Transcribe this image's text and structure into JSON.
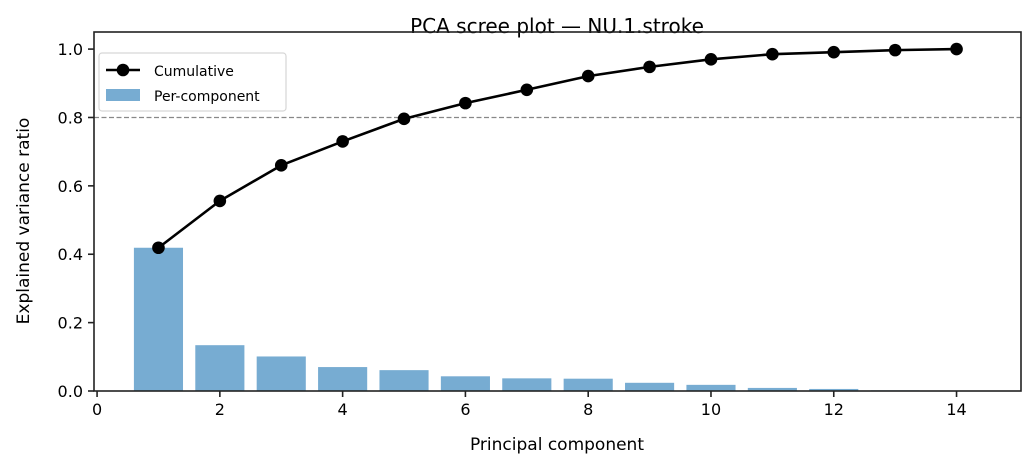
{
  "chart_data": {
    "type": "bar+line",
    "title": "PCA scree plot — NU.1.stroke",
    "xlabel": "Principal component",
    "ylabel": "Explained variance ratio",
    "x": [
      1,
      2,
      3,
      4,
      5,
      6,
      7,
      8,
      9,
      10,
      11,
      12,
      13,
      14
    ],
    "series": [
      {
        "name": "Per-component",
        "type": "bar",
        "color": "#77acd2",
        "values": [
          0.419,
          0.134,
          0.101,
          0.07,
          0.061,
          0.043,
          0.037,
          0.036,
          0.024,
          0.018,
          0.009,
          0.006,
          0.002,
          0.001
        ]
      },
      {
        "name": "Cumulative",
        "type": "line",
        "color": "#000000",
        "marker": "circle",
        "values": [
          0.419,
          0.556,
          0.66,
          0.73,
          0.796,
          0.842,
          0.881,
          0.921,
          0.948,
          0.97,
          0.985,
          0.991,
          0.997,
          1.0
        ]
      }
    ],
    "reference_line": {
      "y": 0.8,
      "style": "dashed",
      "color": "#888888"
    },
    "xlim": [
      -0.05,
      15.05
    ],
    "ylim": [
      0.0,
      1.05
    ],
    "xticks": [
      0,
      2,
      4,
      6,
      8,
      10,
      12,
      14
    ],
    "xtick_labels": [
      "0",
      "2",
      "4",
      "6",
      "8",
      "10",
      "12",
      "14"
    ],
    "yticks": [
      0.0,
      0.2,
      0.4,
      0.6,
      0.8,
      1.0
    ],
    "ytick_labels": [
      "0.0",
      "0.2",
      "0.4",
      "0.6",
      "0.8",
      "1.0"
    ],
    "legend": {
      "position": "upper left",
      "entries": [
        "Cumulative",
        "Per-component"
      ]
    },
    "grid": false
  }
}
